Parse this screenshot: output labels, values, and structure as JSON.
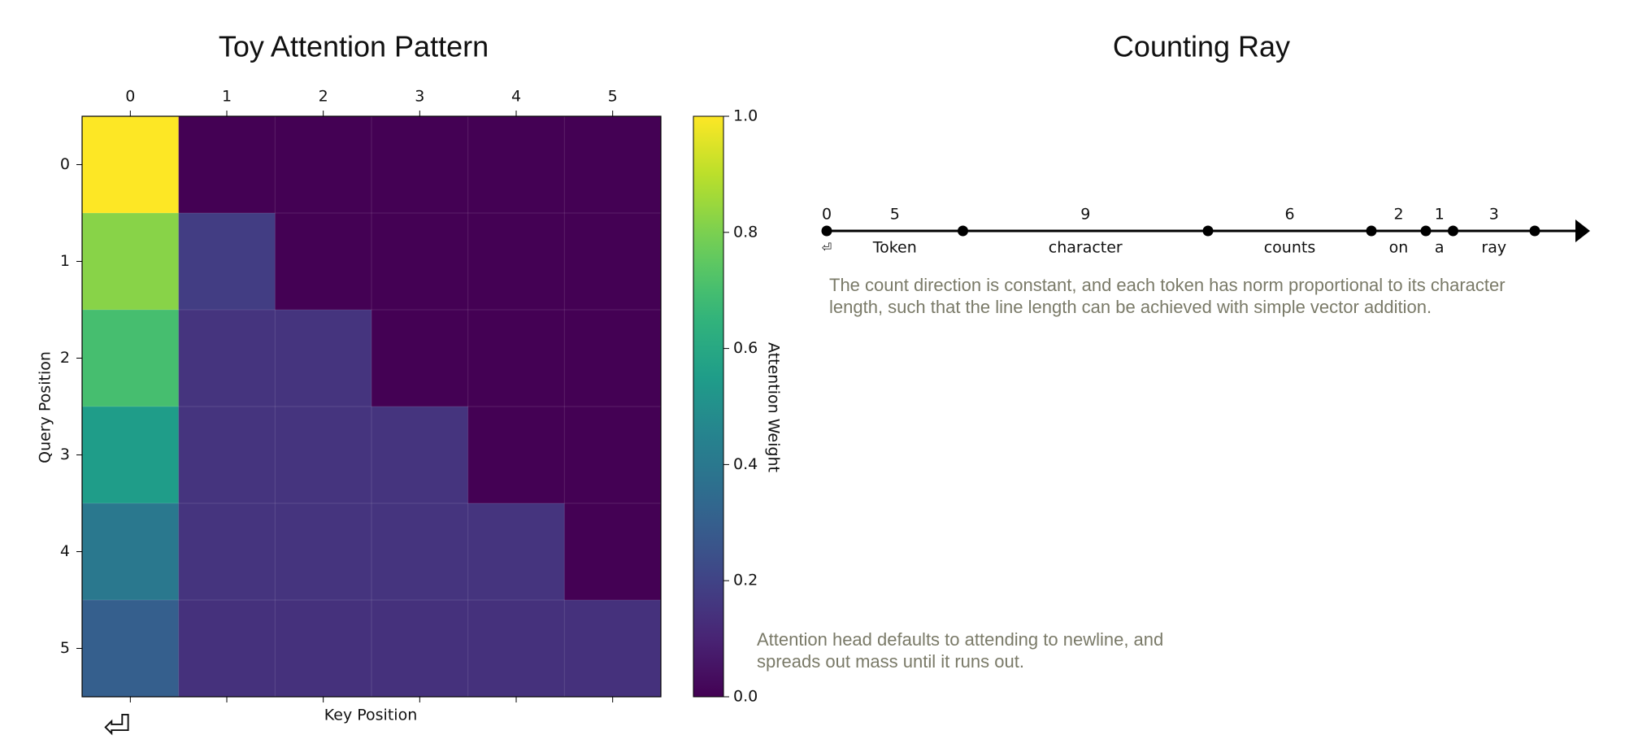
{
  "chart_data": [
    {
      "type": "heatmap",
      "title": "Toy Attention Pattern",
      "x_label": "Key Position",
      "y_label": "Query Position",
      "x_categories": [
        0,
        1,
        2,
        3,
        4,
        5
      ],
      "y_categories": [
        0,
        1,
        2,
        3,
        4,
        5
      ],
      "x_tick_note": "⏎",
      "values": [
        [
          1.0,
          0,
          0,
          0,
          0,
          0
        ],
        [
          0.82,
          0.18,
          0,
          0,
          0,
          0
        ],
        [
          0.7,
          0.15,
          0.15,
          0,
          0,
          0
        ],
        [
          0.55,
          0.15,
          0.15,
          0.15,
          0,
          0
        ],
        [
          0.4,
          0.15,
          0.15,
          0.15,
          0.15,
          0
        ],
        [
          0.3,
          0.14,
          0.14,
          0.14,
          0.14,
          0.14
        ]
      ],
      "colormap": "viridis",
      "colorbar_label": "Attention Weight",
      "clim": [
        0,
        1
      ],
      "cticks": [
        {
          "value": 0,
          "label": "0.0"
        },
        {
          "value": 0.2,
          "label": "0.2"
        },
        {
          "value": 0.4,
          "label": "0.4"
        },
        {
          "value": 0.6,
          "label": "0.6"
        },
        {
          "value": 0.8,
          "label": "0.8"
        },
        {
          "value": 1,
          "label": "1.0"
        }
      ],
      "annotation": [
        "Attention head defaults to attending to newline, and",
        "spreads out mass until it runs out."
      ]
    },
    {
      "type": "ray",
      "title": "Counting Ray",
      "tokens": [
        "⏎",
        "Token",
        "character",
        "counts",
        "on",
        "a",
        "ray"
      ],
      "counts": [
        0,
        5,
        9,
        6,
        2,
        1,
        3
      ],
      "annotation": [
        "The count direction is constant, and each token has norm proportional to its character",
        "length, such that the line length can be achieved with simple vector addition."
      ]
    }
  ]
}
